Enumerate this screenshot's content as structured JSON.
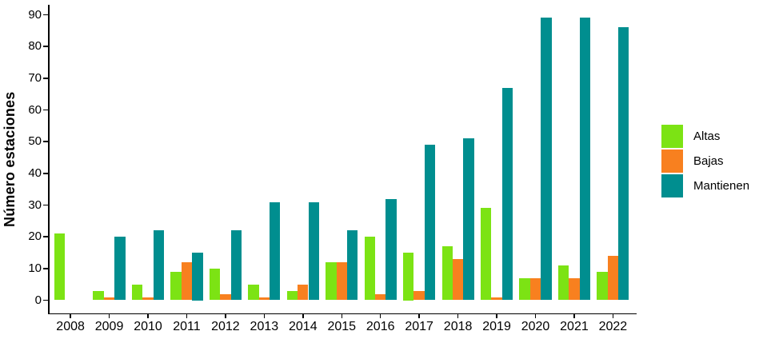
{
  "chart_data": {
    "type": "bar",
    "title": "",
    "xlabel": "",
    "ylabel": "Número estaciones",
    "categories": [
      "2008",
      "2009",
      "2010",
      "2011",
      "2012",
      "2013",
      "2014",
      "2015",
      "2016",
      "2017",
      "2018",
      "2019",
      "2020",
      "2021",
      "2022"
    ],
    "series": [
      {
        "name": "Altas",
        "color": "#7CE314",
        "values": [
          21,
          3,
          5,
          9,
          10,
          5,
          3,
          12,
          20,
          15,
          17,
          29,
          7,
          11,
          9
        ]
      },
      {
        "name": "Bajas",
        "color": "#F8801F",
        "values": [
          0,
          1,
          1,
          12,
          2,
          1,
          5,
          12,
          2,
          3,
          13,
          1,
          7,
          7,
          14
        ]
      },
      {
        "name": "Mantienen",
        "color": "#008E8F",
        "values": [
          0,
          20,
          22,
          15,
          22,
          31,
          31,
          22,
          32,
          49,
          51,
          67,
          89,
          89,
          86
        ]
      }
    ],
    "ylim": [
      0,
      90
    ],
    "yticks": [
      0,
      10,
      20,
      30,
      40,
      50,
      60,
      70,
      80,
      90
    ],
    "grid": false,
    "legend_position": "right",
    "axis_color": "#000000",
    "background_color": "#FFFFFF"
  }
}
